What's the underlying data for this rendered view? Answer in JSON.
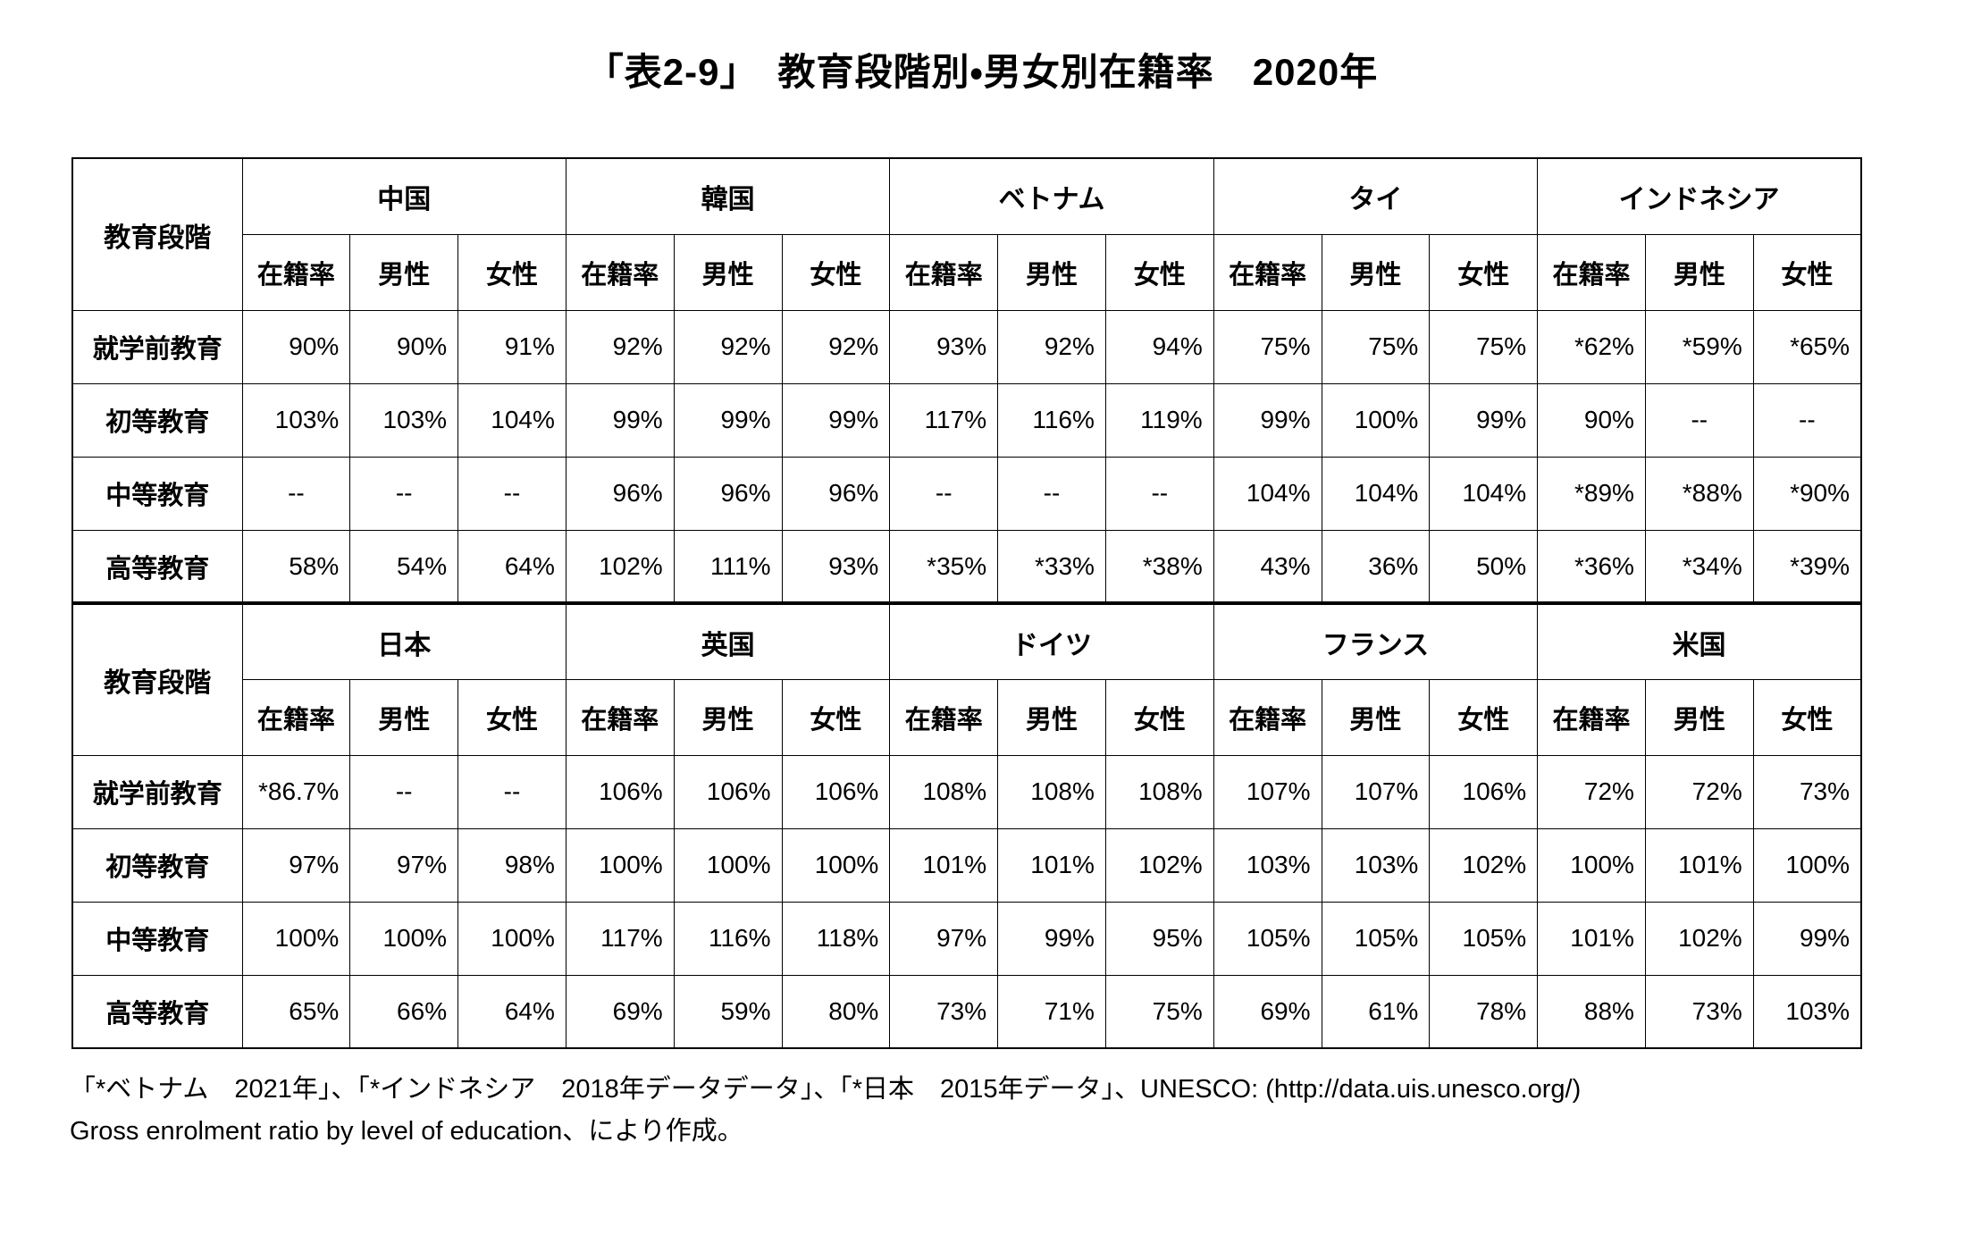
{
  "title": "「表2-9」　教育段階別・男女別在籍率　2020年",
  "chart_data": {
    "type": "table",
    "title": "「表2-9」　教育段階別・男女別在籍率　2020年",
    "row_header_label": "教育段階",
    "sub_columns": [
      "在籍率",
      "男性",
      "女性"
    ],
    "row_labels": [
      "就学前教育",
      "初等教育",
      "中等教育",
      "高等教育"
    ],
    "sections": [
      {
        "countries": [
          "中国",
          "韓国",
          "ベトナム",
          "タイ",
          "インドネシア"
        ],
        "rows": [
          {
            "label": "就学前教育",
            "values": [
              "90%",
              "90%",
              "91%",
              "92%",
              "92%",
              "92%",
              "93%",
              "92%",
              "94%",
              "75%",
              "75%",
              "75%",
              "*62%",
              "*59%",
              "*65%"
            ]
          },
          {
            "label": "初等教育",
            "values": [
              "103%",
              "103%",
              "104%",
              "99%",
              "99%",
              "99%",
              "117%",
              "116%",
              "119%",
              "99%",
              "100%",
              "99%",
              "90%",
              "--",
              "--"
            ]
          },
          {
            "label": "中等教育",
            "values": [
              "--",
              "--",
              "--",
              "96%",
              "96%",
              "96%",
              "--",
              "--",
              "--",
              "104%",
              "104%",
              "104%",
              "*89%",
              "*88%",
              "*90%"
            ]
          },
          {
            "label": "高等教育",
            "values": [
              "58%",
              "54%",
              "64%",
              "102%",
              "111%",
              "93%",
              "*35%",
              "*33%",
              "*38%",
              "43%",
              "36%",
              "50%",
              "*36%",
              "*34%",
              "*39%"
            ]
          }
        ]
      },
      {
        "countries": [
          "日本",
          "英国",
          "ドイツ",
          "フランス",
          "米国"
        ],
        "rows": [
          {
            "label": "就学前教育",
            "values": [
              "*86.7%",
              "--",
              "--",
              "106%",
              "106%",
              "106%",
              "108%",
              "108%",
              "108%",
              "107%",
              "107%",
              "106%",
              "72%",
              "72%",
              "73%"
            ]
          },
          {
            "label": "初等教育",
            "values": [
              "97%",
              "97%",
              "98%",
              "100%",
              "100%",
              "100%",
              "101%",
              "101%",
              "102%",
              "103%",
              "103%",
              "102%",
              "100%",
              "101%",
              "100%"
            ]
          },
          {
            "label": "中等教育",
            "values": [
              "100%",
              "100%",
              "100%",
              "117%",
              "116%",
              "118%",
              "97%",
              "99%",
              "95%",
              "105%",
              "105%",
              "105%",
              "101%",
              "102%",
              "99%"
            ]
          },
          {
            "label": "高等教育",
            "values": [
              "65%",
              "66%",
              "64%",
              "69%",
              "59%",
              "80%",
              "73%",
              "71%",
              "75%",
              "69%",
              "61%",
              "78%",
              "88%",
              "73%",
              "103%"
            ]
          }
        ]
      }
    ]
  },
  "footnotes": [
    "「*ベトナム　2021年」、「*インドネシア　2018年データデータ」、「*日本　2015年データ」、UNESCO: (http://data.uis.unesco.org/)",
    "Gross enrolment ratio by level of education、により作成。"
  ]
}
